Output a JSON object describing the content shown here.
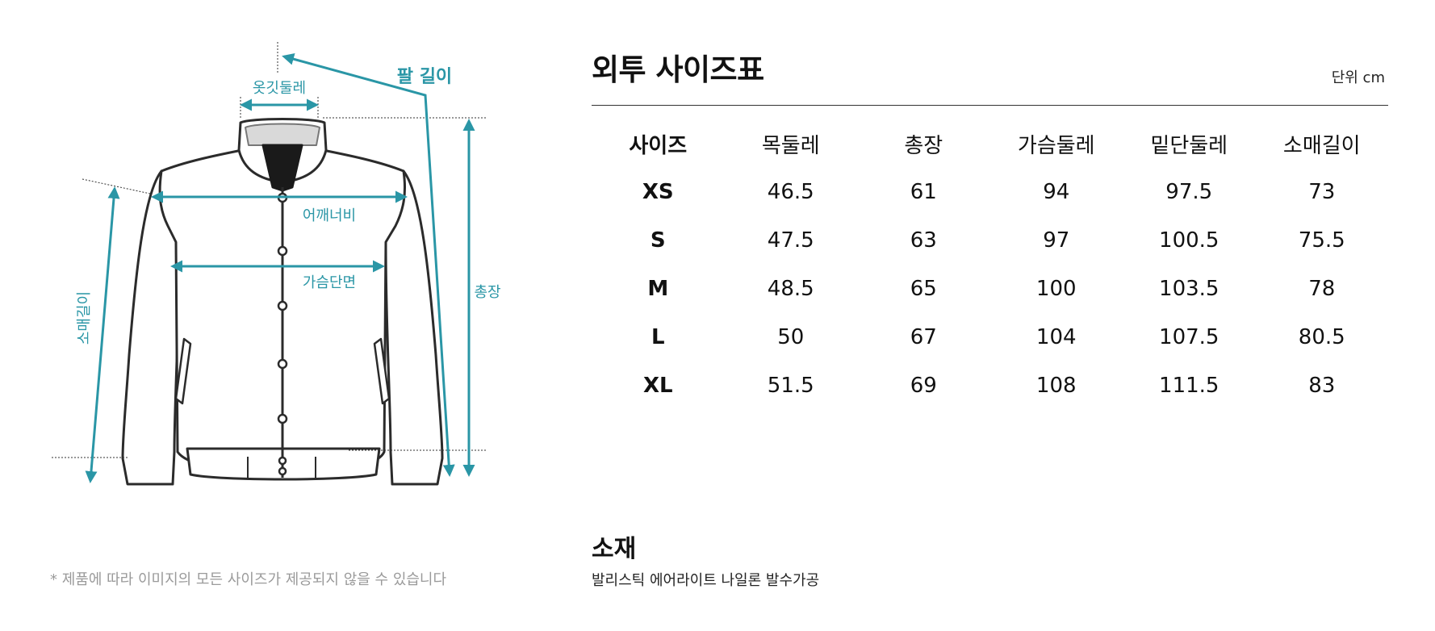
{
  "diagram": {
    "labels": {
      "collar": "옷깃둘레",
      "arm_length": "팔 길이",
      "shoulder": "어깨너비",
      "chest": "가슴단면",
      "sleeve": "소매길이",
      "total_length": "총장"
    },
    "accent_color": "#2a96a6"
  },
  "note": "* 제품에 따라 이미지의 모든 사이즈가 제공되지 않을 수 있습니다",
  "size_chart": {
    "title": "외투 사이즈표",
    "unit": "단위 cm",
    "headers": [
      "사이즈",
      "목둘레",
      "총장",
      "가슴둘레",
      "밑단둘레",
      "소매길이"
    ],
    "rows": [
      [
        "XS",
        "46.5",
        "61",
        "94",
        "97.5",
        "73"
      ],
      [
        "S",
        "47.5",
        "63",
        "97",
        "100.5",
        "75.5"
      ],
      [
        "M",
        "48.5",
        "65",
        "100",
        "103.5",
        "78"
      ],
      [
        "L",
        "50",
        "67",
        "104",
        "107.5",
        "80.5"
      ],
      [
        "XL",
        "51.5",
        "69",
        "108",
        "111.5",
        "83"
      ]
    ]
  },
  "material": {
    "title": "소재",
    "text": "발리스틱 에어라이트 나일론 발수가공"
  }
}
